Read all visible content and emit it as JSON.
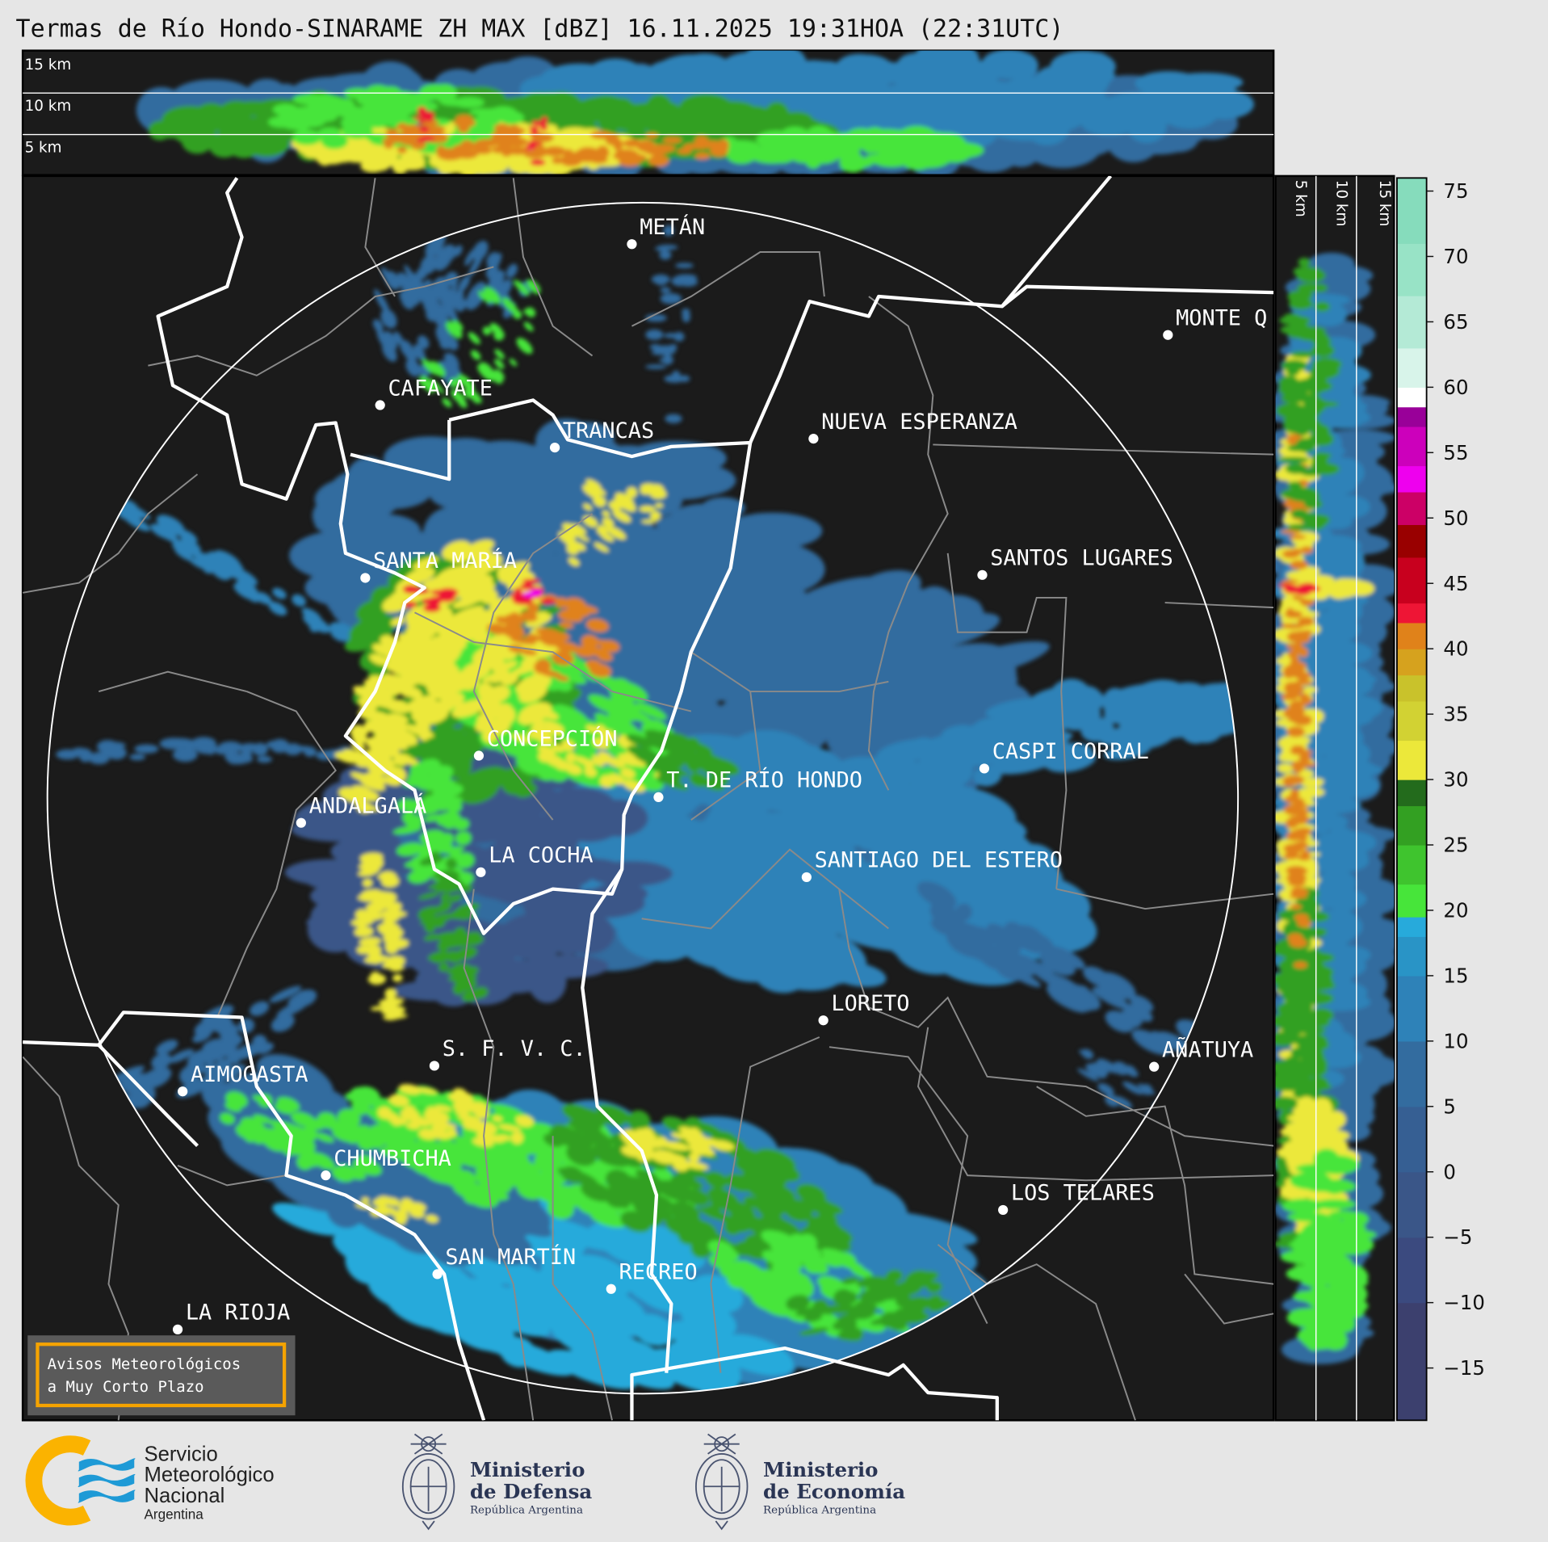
{
  "title": "Termas de Río Hondo-SINARAME ZH MAX [dBZ] 16.11.2025 19:31HOA (22:31UTC)",
  "top_panel": {
    "height_labels": [
      "15 km",
      "10 km",
      "5 km"
    ]
  },
  "side_panel": {
    "height_labels": [
      "5 km",
      "10 km",
      "15 km"
    ]
  },
  "colorbar": {
    "unit": "dBZ",
    "range": [
      -19,
      76
    ],
    "ticks": [
      "75",
      "70",
      "65",
      "60",
      "55",
      "50",
      "45",
      "40",
      "35",
      "30",
      "25",
      "20",
      "15",
      "10",
      "5",
      "0",
      "−5",
      "−10",
      "−15"
    ],
    "bands": [
      {
        "from": -19,
        "to": -10,
        "color": "#3c406e"
      },
      {
        "from": -10,
        "to": -5,
        "color": "#3b4a7f"
      },
      {
        "from": -5,
        "to": 0,
        "color": "#3a5688"
      },
      {
        "from": 0,
        "to": 5,
        "color": "#365f93"
      },
      {
        "from": 5,
        "to": 10,
        "color": "#336c9f"
      },
      {
        "from": 10,
        "to": 15,
        "color": "#2e82b8"
      },
      {
        "from": 15,
        "to": 18,
        "color": "#2994c6"
      },
      {
        "from": 18,
        "to": 19.5,
        "color": "#27aadb"
      },
      {
        "from": 19.5,
        "to": 22,
        "color": "#47e53a"
      },
      {
        "from": 22,
        "to": 25,
        "color": "#3fc42e"
      },
      {
        "from": 25,
        "to": 28,
        "color": "#33a022"
      },
      {
        "from": 28,
        "to": 30,
        "color": "#236b1c"
      },
      {
        "from": 30,
        "to": 33,
        "color": "#ece83a"
      },
      {
        "from": 33,
        "to": 36,
        "color": "#d2d233"
      },
      {
        "from": 36,
        "to": 38,
        "color": "#c9c22b"
      },
      {
        "from": 38,
        "to": 40,
        "color": "#d6a21e"
      },
      {
        "from": 40,
        "to": 42,
        "color": "#e0821a"
      },
      {
        "from": 42,
        "to": 43.5,
        "color": "#ee1535"
      },
      {
        "from": 43.5,
        "to": 47,
        "color": "#c8001e"
      },
      {
        "from": 47,
        "to": 49.5,
        "color": "#990000"
      },
      {
        "from": 49.5,
        "to": 52,
        "color": "#cc0066"
      },
      {
        "from": 52,
        "to": 54,
        "color": "#ee00ee"
      },
      {
        "from": 54,
        "to": 57,
        "color": "#cc00bb"
      },
      {
        "from": 57,
        "to": 58.5,
        "color": "#990099"
      },
      {
        "from": 58.5,
        "to": 60,
        "color": "#ffffff"
      },
      {
        "from": 60,
        "to": 63,
        "color": "#d8f4ea"
      },
      {
        "from": 63,
        "to": 67,
        "color": "#b4ead6"
      },
      {
        "from": 67,
        "to": 71,
        "color": "#98e3c6"
      },
      {
        "from": 71,
        "to": 76,
        "color": "#86dcbc"
      }
    ]
  },
  "cities": [
    {
      "name": "METÁN"
    },
    {
      "name": "MONTE Q"
    },
    {
      "name": "CAFAYATE"
    },
    {
      "name": "TRANCAS"
    },
    {
      "name": "NUEVA ESPERANZA"
    },
    {
      "name": "SANTA MARÍA"
    },
    {
      "name": "SANTOS LUGARES"
    },
    {
      "name": "CONCEPCIÓN"
    },
    {
      "name": "CASPI CORRAL"
    },
    {
      "name": "T. DE RÍO HONDO"
    },
    {
      "name": "ANDALGALÁ"
    },
    {
      "name": "LA COCHA"
    },
    {
      "name": "SANTIAGO DEL ESTERO"
    },
    {
      "name": "LORETO"
    },
    {
      "name": "S. F. V. C."
    },
    {
      "name": "AÑATUYA"
    },
    {
      "name": "AIMOGASTA"
    },
    {
      "name": "CHUMBICHA"
    },
    {
      "name": "LOS TELARES"
    },
    {
      "name": "SAN MARTÍN"
    },
    {
      "name": "RECREO"
    },
    {
      "name": "LA RIOJA"
    }
  ],
  "aviso": {
    "line1": "Avisos Meteorológicos",
    "line2": "a Muy Corto Plazo",
    "border_color": "#f5a300"
  },
  "logos": {
    "smn": {
      "line1": "Servicio",
      "line2": "Meteorológico",
      "line3": "Nacional",
      "line4": "Argentina"
    },
    "defensa": {
      "line1": "Ministerio",
      "line2": "de Defensa",
      "line3": "República Argentina"
    },
    "economia": {
      "line1": "Ministerio",
      "line2": "de Economía",
      "line3": "República Argentina"
    }
  }
}
